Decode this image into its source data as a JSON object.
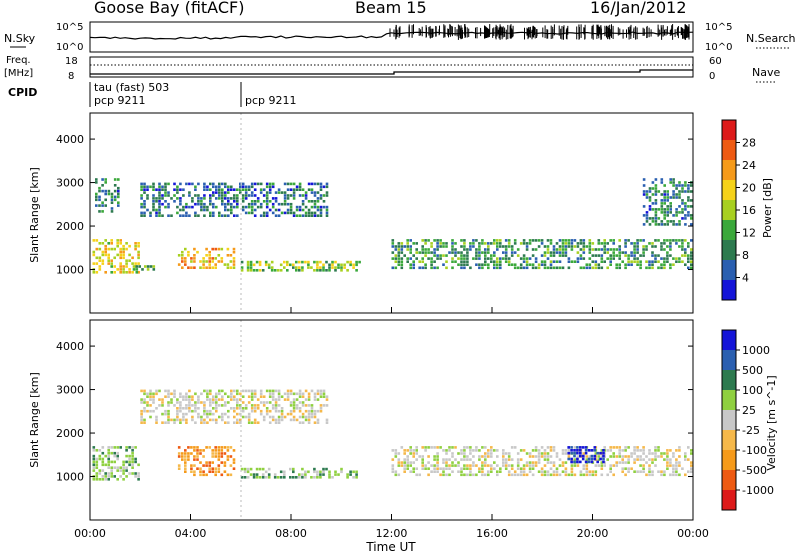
{
  "header": {
    "station": "Goose Bay (fitACF)",
    "beam": "Beam 15",
    "date": "16/Jan/2012"
  },
  "top_panels": {
    "nsky_label": "N.Sky",
    "nsky_ticks": [
      "10^5",
      "10^0"
    ],
    "nsearch_label": "N.Search",
    "nsearch_ticks": [
      "10^5",
      "10^0"
    ],
    "freq_label_1": "Freq.",
    "freq_label_2": "[MHz]",
    "freq_ticks": [
      "18",
      "8"
    ],
    "nave_label": "Nave",
    "nave_ticks": [
      "60",
      "0"
    ],
    "cpid_label": "CPID",
    "cpid_segments": [
      {
        "lines": [
          "tau (fast) 503",
          "pcp 9211"
        ]
      },
      {
        "lines": [
          "pcp 9211"
        ]
      }
    ]
  },
  "colors": {
    "power_scale": [
      "#1515d8",
      "#2a5fb0",
      "#2d7a4f",
      "#3aa83a",
      "#a8d020",
      "#f5d21a",
      "#f59a1a",
      "#ee5a12",
      "#dd1a1a"
    ],
    "velocity_scale": [
      "#dd1a1a",
      "#ee5a12",
      "#f59a1a",
      "#f5b84a",
      "#c8c8c8",
      "#8fd040",
      "#2d7a4f",
      "#2a5fb0",
      "#1515d8"
    ]
  },
  "chart_data": [
    {
      "type": "heatmap",
      "panel": "power",
      "ylabel": "Slant Range [km]",
      "yticks": [
        "1000",
        "2000",
        "3000",
        "4000"
      ],
      "ylim": [
        0,
        4600
      ],
      "xlim": [
        "00:00",
        "24:00"
      ],
      "colorbar_label": "Power [dB]",
      "colorbar_ticks": [
        "4",
        "8",
        "12",
        "16",
        "20",
        "24",
        "28"
      ],
      "colorbar_range": [
        0,
        30
      ],
      "echo_regions": [
        {
          "t0": 0.1,
          "t1": 2.0,
          "r0": 900,
          "r1": 1700,
          "level": 18
        },
        {
          "t0": 0.2,
          "t1": 1.2,
          "r0": 2300,
          "r1": 3100,
          "level": 7
        },
        {
          "t0": 1.7,
          "t1": 2.6,
          "r0": 900,
          "r1": 1100,
          "level": 12
        },
        {
          "t0": 3.5,
          "t1": 5.8,
          "r0": 1000,
          "r1": 1500,
          "level": 20
        },
        {
          "t0": 6.0,
          "t1": 10.8,
          "r0": 950,
          "r1": 1200,
          "level": 14
        },
        {
          "t0": 2.0,
          "t1": 9.5,
          "r0": 2200,
          "r1": 3000,
          "level": 6
        },
        {
          "t0": 12.0,
          "t1": 24.0,
          "r0": 1000,
          "r1": 1700,
          "level": 9
        },
        {
          "t0": 22.0,
          "t1": 24.0,
          "r0": 2000,
          "r1": 3100,
          "level": 7
        }
      ]
    },
    {
      "type": "heatmap",
      "panel": "velocity",
      "ylabel": "Slant Range [km]",
      "yticks": [
        "1000",
        "2000",
        "3000",
        "4000"
      ],
      "ylim": [
        0,
        4600
      ],
      "xlim": [
        "00:00",
        "24:00"
      ],
      "xticks": [
        "00:00",
        "04:00",
        "08:00",
        "12:00",
        "16:00",
        "20:00",
        "00:00"
      ],
      "xlabel": "Time UT",
      "colorbar_label": "Velocity [m s^-1]",
      "colorbar_ticks": [
        "-1000",
        "-500",
        "-100",
        "-25",
        "25",
        "100",
        "500",
        "1000"
      ],
      "echo_regions": [
        {
          "t0": 0.1,
          "t1": 2.0,
          "r0": 900,
          "r1": 1700,
          "class": 5
        },
        {
          "t0": 3.5,
          "t1": 5.8,
          "r0": 1000,
          "r1": 1700,
          "class": 2
        },
        {
          "t0": 6.0,
          "t1": 10.8,
          "r0": 950,
          "r1": 1200,
          "class": 5
        },
        {
          "t0": 2.0,
          "t1": 9.5,
          "r0": 2200,
          "r1": 3000,
          "class": 4
        },
        {
          "t0": 12.0,
          "t1": 24.0,
          "r0": 1000,
          "r1": 1700,
          "class": 4
        },
        {
          "t0": 19.0,
          "t1": 20.5,
          "r0": 1300,
          "r1": 1700,
          "class": 8
        }
      ]
    }
  ]
}
